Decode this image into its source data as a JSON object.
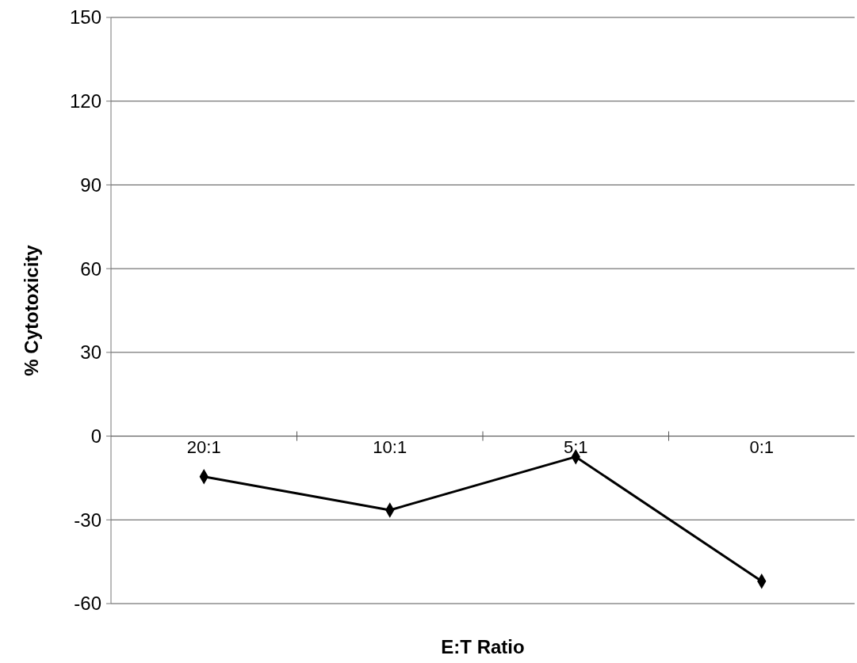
{
  "chart_data": {
    "type": "line",
    "xlabel": "E:T Ratio",
    "ylabel": "% Cytotoxicity",
    "categories": [
      "20:1",
      "10:1",
      "5:1",
      "0:1"
    ],
    "series": [
      {
        "color": "#000000",
        "values": [
          -14.5,
          -26.5,
          -7.4,
          -52
        ]
      }
    ],
    "ylim": [
      -60,
      150
    ],
    "yticks": [
      -60,
      -30,
      0,
      30,
      60,
      90,
      120,
      150
    ],
    "grid": "y",
    "marker": "diamond",
    "line_style": "solid"
  }
}
